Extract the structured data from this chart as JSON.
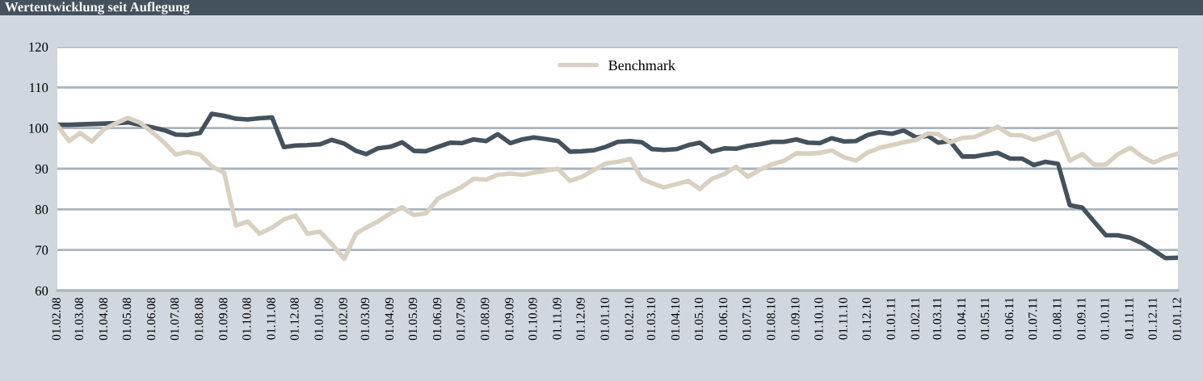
{
  "chart_data": {
    "type": "line",
    "title": "Wertentwicklung seit Auflegung",
    "x": [
      "2008-02-01",
      "2008-02-16",
      "2008-03-01",
      "2008-03-16",
      "2008-04-01",
      "2008-04-16",
      "2008-05-01",
      "2008-05-16",
      "2008-06-01",
      "2008-06-16",
      "2008-07-01",
      "2008-07-16",
      "2008-08-01",
      "2008-08-16",
      "2008-09-01",
      "2008-09-16",
      "2008-10-01",
      "2008-10-16",
      "2008-11-01",
      "2008-11-16",
      "2008-12-01",
      "2008-12-16",
      "2009-01-01",
      "2009-01-16",
      "2009-02-01",
      "2009-02-16",
      "2009-03-01",
      "2009-03-16",
      "2009-04-01",
      "2009-04-16",
      "2009-05-01",
      "2009-05-16",
      "2009-06-01",
      "2009-06-16",
      "2009-07-01",
      "2009-07-16",
      "2009-08-01",
      "2009-08-16",
      "2009-09-01",
      "2009-09-16",
      "2009-10-01",
      "2009-10-16",
      "2009-11-01",
      "2009-11-16",
      "2009-12-01",
      "2009-12-16",
      "2010-01-01",
      "2010-01-16",
      "2010-02-01",
      "2010-02-16",
      "2010-03-01",
      "2010-03-16",
      "2010-04-01",
      "2010-04-16",
      "2010-05-01",
      "2010-05-16",
      "2010-06-01",
      "2010-06-16",
      "2010-07-01",
      "2010-07-16",
      "2010-08-01",
      "2010-08-16",
      "2010-09-01",
      "2010-09-16",
      "2010-10-01",
      "2010-10-16",
      "2010-11-01",
      "2010-11-16",
      "2010-12-01",
      "2010-12-16",
      "2011-01-01",
      "2011-01-16",
      "2011-02-01",
      "2011-02-16",
      "2011-03-01",
      "2011-03-16",
      "2011-04-01",
      "2011-04-16",
      "2011-05-01",
      "2011-05-16",
      "2011-06-01",
      "2011-06-16",
      "2011-07-01",
      "2011-07-16",
      "2011-08-01",
      "2011-08-16",
      "2011-09-01",
      "2011-09-16",
      "2011-10-01",
      "2011-10-16",
      "2011-11-01",
      "2011-11-16",
      "2011-12-01",
      "2011-12-16",
      "2012-01-01"
    ],
    "series": [
      {
        "color": "#44525e",
        "values": [
          100.8,
          100.8,
          100.9,
          101.0,
          101.1,
          101.2,
          101.4,
          100.8,
          100.2,
          99.5,
          98.4,
          98.3,
          98.8,
          103.5,
          103.0,
          102.3,
          102.1,
          102.4,
          102.6,
          95.3,
          95.7,
          95.8,
          96.0,
          97.1,
          96.2,
          94.4,
          93.6,
          95.0,
          95.4,
          96.5,
          94.4,
          94.3,
          95.4,
          96.4,
          96.3,
          97.2,
          96.8,
          98.5,
          96.3,
          97.2,
          97.7,
          97.3,
          96.8,
          94.2,
          94.3,
          94.5,
          95.4,
          96.6,
          96.8,
          96.5,
          94.8,
          94.6,
          94.8,
          95.8,
          96.4,
          94.2,
          95.0,
          94.9,
          95.6,
          96.0,
          96.6,
          96.6,
          97.2,
          96.4,
          96.3,
          97.5,
          96.7,
          96.8,
          98.3,
          99.0,
          98.6,
          99.4,
          97.7,
          98.1,
          96.4,
          96.8,
          93.0,
          93.0,
          93.5,
          93.9,
          92.5,
          92.5,
          90.9,
          91.7,
          91.2,
          81.0,
          80.4,
          77.0,
          73.6,
          73.6,
          73.0,
          71.7,
          69.9,
          68.0,
          68.1
        ]
      },
      {
        "name": "Benchmark",
        "color": "#d9d0c1",
        "values": [
          100.7,
          96.8,
          98.8,
          96.7,
          99.8,
          101.2,
          102.5,
          101.4,
          99.0,
          96.5,
          93.5,
          94.1,
          93.5,
          90.6,
          89.0,
          76.0,
          77.0,
          74.0,
          75.5,
          77.5,
          78.5,
          74.0,
          74.5,
          71.5,
          67.8,
          74.0,
          75.5,
          77.0,
          79.0,
          80.5,
          78.6,
          79.0,
          82.7,
          84.1,
          85.5,
          87.5,
          87.3,
          88.5,
          88.8,
          88.5,
          89.0,
          89.5,
          90.0,
          87.0,
          88.0,
          89.6,
          91.3,
          91.7,
          92.4,
          87.5,
          86.4,
          85.4,
          86.2,
          87.0,
          85.0,
          87.5,
          88.7,
          90.5,
          88.0,
          89.7,
          91.1,
          91.9,
          93.8,
          93.7,
          93.9,
          94.5,
          92.8,
          92.0,
          94.0,
          95.1,
          95.8,
          96.5,
          97.1,
          98.7,
          98.5,
          96.5,
          97.6,
          97.8,
          99.0,
          100.3,
          98.3,
          98.2,
          97.1,
          98.0,
          99.1,
          92.0,
          93.6,
          91.0,
          91.0,
          93.5,
          95.2,
          93.0,
          91.5,
          92.8,
          93.7
        ]
      }
    ],
    "xlim": [
      "2008-02-01",
      "2012-01-01"
    ],
    "xticks": [
      {
        "value": "2008-02-01",
        "label": "01.02.08"
      },
      {
        "value": "2008-03-01",
        "label": "01.03.08"
      },
      {
        "value": "2008-04-01",
        "label": "01.04.08"
      },
      {
        "value": "2008-05-01",
        "label": "01.05.08"
      },
      {
        "value": "2008-06-01",
        "label": "01.06.08"
      },
      {
        "value": "2008-07-01",
        "label": "01.07.08"
      },
      {
        "value": "2008-08-01",
        "label": "01.08.08"
      },
      {
        "value": "2008-09-01",
        "label": "01.09.08"
      },
      {
        "value": "2008-10-01",
        "label": "01.10.08"
      },
      {
        "value": "2008-11-01",
        "label": "01.11.08"
      },
      {
        "value": "2008-12-01",
        "label": "01.12.08"
      },
      {
        "value": "2009-01-01",
        "label": "01.01.09"
      },
      {
        "value": "2009-02-01",
        "label": "01.02.09"
      },
      {
        "value": "2009-03-01",
        "label": "01.03.09"
      },
      {
        "value": "2009-04-01",
        "label": "01.04.09"
      },
      {
        "value": "2009-05-01",
        "label": "01.05.09"
      },
      {
        "value": "2009-06-01",
        "label": "01.06.09"
      },
      {
        "value": "2009-07-01",
        "label": "01.07.09"
      },
      {
        "value": "2009-08-01",
        "label": "01.08.09"
      },
      {
        "value": "2009-09-01",
        "label": "01.09.09"
      },
      {
        "value": "2009-10-01",
        "label": "01.10.09"
      },
      {
        "value": "2009-11-01",
        "label": "01.11.09"
      },
      {
        "value": "2009-12-01",
        "label": "01.12.09"
      },
      {
        "value": "2010-01-01",
        "label": "01.01.10"
      },
      {
        "value": "2010-02-01",
        "label": "01.02.10"
      },
      {
        "value": "2010-03-01",
        "label": "01.03.10"
      },
      {
        "value": "2010-04-01",
        "label": "01.04.10"
      },
      {
        "value": "2010-05-01",
        "label": "01.05.10"
      },
      {
        "value": "2010-06-01",
        "label": "01.06.10"
      },
      {
        "value": "2010-07-01",
        "label": "01.07.10"
      },
      {
        "value": "2010-08-01",
        "label": "01.08.10"
      },
      {
        "value": "2010-09-01",
        "label": "01.09.10"
      },
      {
        "value": "2010-10-01",
        "label": "01.10.10"
      },
      {
        "value": "2010-11-01",
        "label": "01.11.10"
      },
      {
        "value": "2010-12-01",
        "label": "01.12.10"
      },
      {
        "value": "2011-01-01",
        "label": "01.01.11"
      },
      {
        "value": "2011-02-01",
        "label": "01.02.11"
      },
      {
        "value": "2011-03-01",
        "label": "01.03.11"
      },
      {
        "value": "2011-04-01",
        "label": "01.04.11"
      },
      {
        "value": "2011-05-01",
        "label": "01.05.11"
      },
      {
        "value": "2011-06-01",
        "label": "01.06.11"
      },
      {
        "value": "2011-07-01",
        "label": "01.07.11"
      },
      {
        "value": "2011-08-01",
        "label": "01.08.11"
      },
      {
        "value": "2011-09-01",
        "label": "01.09.11"
      },
      {
        "value": "2011-10-01",
        "label": "01.10.11"
      },
      {
        "value": "2011-11-01",
        "label": "01.11.11"
      },
      {
        "value": "2011-12-01",
        "label": "01.12.11"
      },
      {
        "value": "2012-01-01",
        "label": "01.01.12"
      }
    ],
    "ylim": [
      60,
      120
    ],
    "yticks": [
      60,
      70,
      80,
      90,
      100,
      110,
      120
    ],
    "grid": "y",
    "legend": "top",
    "marker": "none",
    "line_style": "solid"
  }
}
